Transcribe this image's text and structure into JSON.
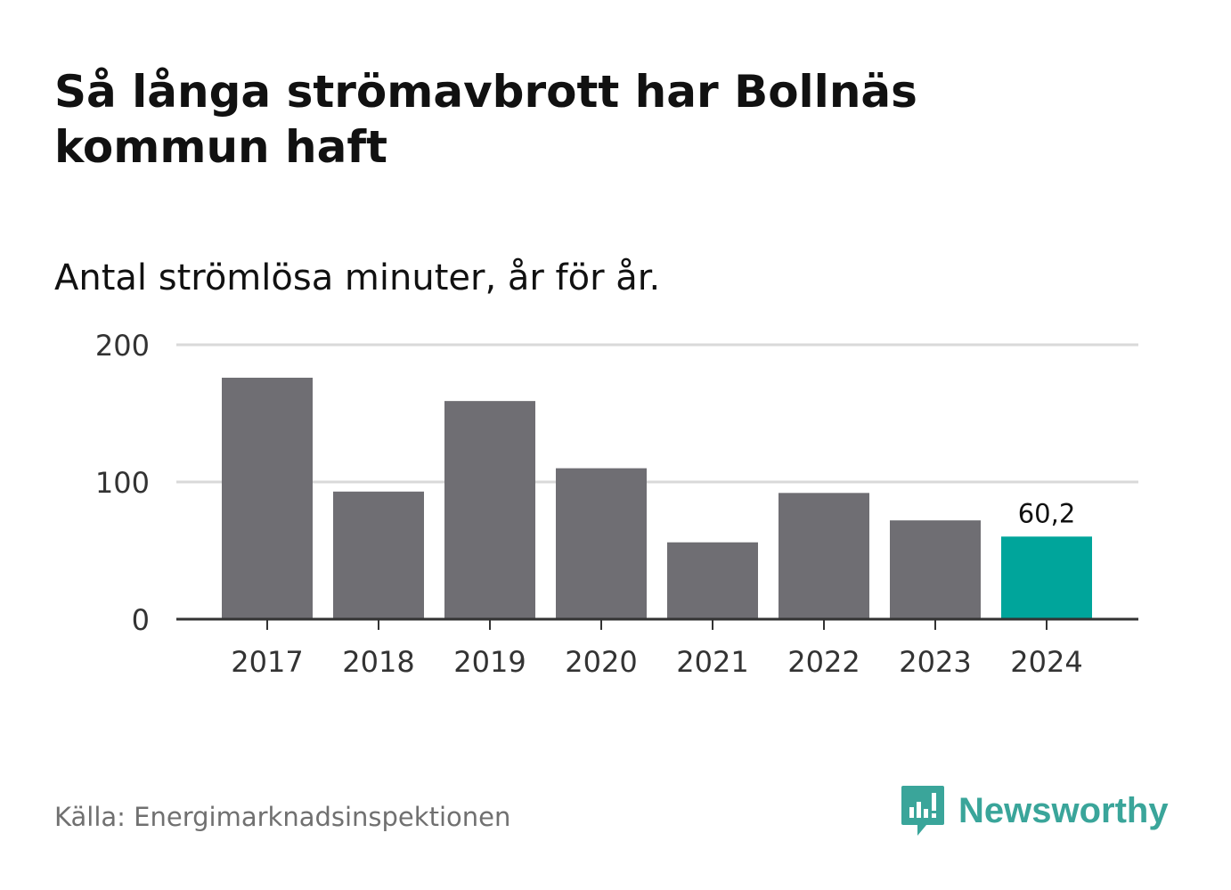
{
  "header": {
    "title": "Så långa strömavbrott har Bollnäs kommun haft",
    "subtitle": "Antal strömlösa minuter, år för år."
  },
  "footer": {
    "source": "Källa: Energimarknadsinspektionen",
    "brand": "Newsworthy"
  },
  "colors": {
    "bar": "#6f6e73",
    "highlight": "#00a59b",
    "grid": "#d9d9d9",
    "axis": "#333333",
    "brand": "#3aa59a"
  },
  "chart_data": {
    "type": "bar",
    "title": "Så långa strömavbrott har Bollnäs kommun haft",
    "subtitle": "Antal strömlösa minuter, år för år.",
    "xlabel": "",
    "ylabel": "",
    "categories": [
      "2017",
      "2018",
      "2019",
      "2020",
      "2021",
      "2022",
      "2023",
      "2024"
    ],
    "values": [
      176,
      93,
      159,
      110,
      56,
      92,
      72,
      60.2
    ],
    "highlight_index": 7,
    "data_labels": [
      {
        "index": 7,
        "text": "60,2"
      }
    ],
    "ylim": [
      0,
      200
    ],
    "yticks": [
      0,
      100,
      200
    ],
    "grid": true
  }
}
